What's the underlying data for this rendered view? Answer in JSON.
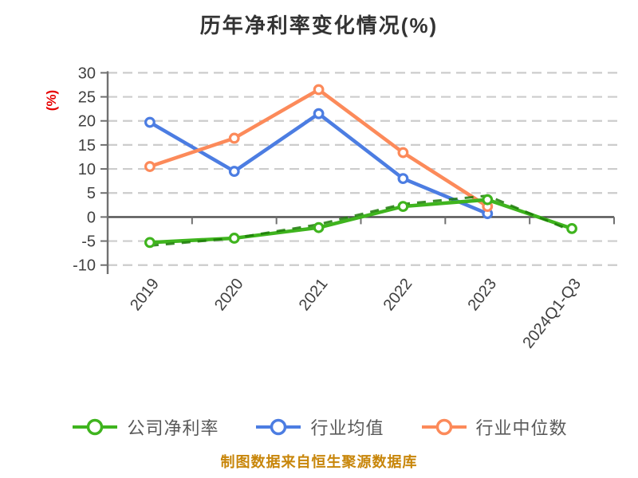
{
  "title": "历年净利率变化情况(%)",
  "y_axis_label": "(%)",
  "footer_note": "制图数据来自恒生聚源数据库",
  "colors": {
    "company_green": "#3FB41E",
    "company_dash_green": "#1B7A07",
    "industry_blue": "#4C7DE2",
    "median_salmon": "#FC8A5A",
    "gridline_gray": "#CCCCCC",
    "axis_gray": "#707070",
    "baseline_gray": "#4D4D4D",
    "tick_text": "#404040",
    "title_text": "#333333",
    "legend_text": "#595959",
    "ylabel_red": "#E60000",
    "footer_gold": "#C8860A",
    "background": "#FFFFFF"
  },
  "chart_data": {
    "type": "line",
    "title": "历年净利率变化情况(%)",
    "xlabel": "",
    "ylabel": "(%)",
    "categories": [
      "2019",
      "2020",
      "2021",
      "2022",
      "2023",
      "2024Q1-Q3"
    ],
    "y_ticks": [
      -10,
      -5,
      0,
      5,
      10,
      15,
      20,
      25,
      30
    ],
    "ylim": [
      -10,
      30
    ],
    "grid": "horizontal-dashed",
    "legend_position": "bottom",
    "marker_style": "white-filled-circle",
    "series": [
      {
        "name": "公司净利率",
        "color": "#3FB41E",
        "style": "solid-with-dark-dashed-overlay",
        "values": [
          -5.3,
          -4.4,
          -2.2,
          2.2,
          3.6,
          -2.4
        ]
      },
      {
        "name": "行业均值",
        "color": "#4C7DE2",
        "style": "solid",
        "values": [
          19.7,
          9.5,
          21.5,
          8.0,
          0.7,
          null
        ]
      },
      {
        "name": "行业中位数",
        "color": "#FC8A5A",
        "style": "solid",
        "values": [
          10.5,
          16.4,
          26.5,
          13.4,
          2.2,
          null
        ]
      }
    ]
  }
}
